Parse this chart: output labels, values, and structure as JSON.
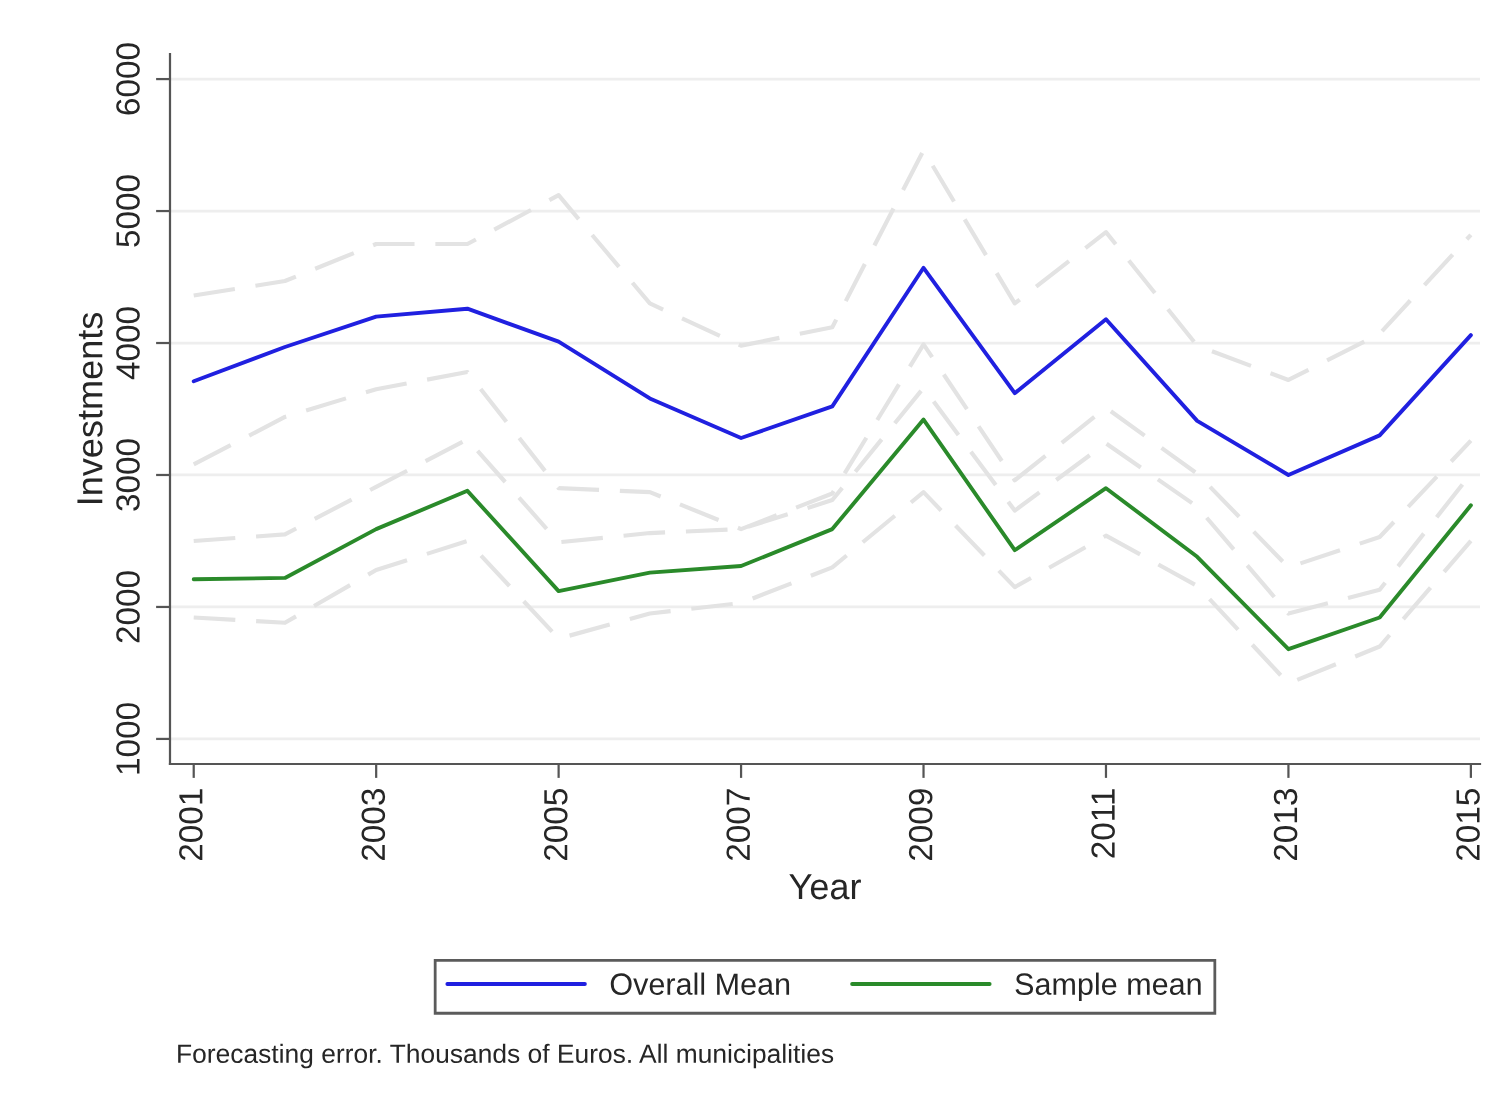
{
  "chart_data": {
    "type": "line",
    "xlabel": "Year",
    "ylabel": "Investments",
    "x": [
      2001,
      2002,
      2003,
      2004,
      2005,
      2006,
      2007,
      2008,
      2009,
      2010,
      2011,
      2012,
      2013,
      2014,
      2015
    ],
    "series": [
      {
        "color": "#e3e3e3",
        "line_style": "dashed",
        "values": [
          4360,
          4470,
          4750,
          4750,
          5120,
          4300,
          3980,
          4120,
          5460,
          4300,
          4840,
          3980,
          3720,
          4070,
          4820
        ]
      },
      {
        "color": "#e3e3e3",
        "line_style": "dashed",
        "values": [
          3080,
          3440,
          3650,
          3780,
          2900,
          2870,
          2590,
          2860,
          3990,
          2960,
          3510,
          3010,
          2300,
          2530,
          3260
        ]
      },
      {
        "color": "#e3e3e3",
        "line_style": "dashed",
        "values": [
          2500,
          2550,
          2910,
          3270,
          2490,
          2560,
          2590,
          2810,
          3660,
          2730,
          3240,
          2760,
          1950,
          2130,
          3010
        ]
      },
      {
        "color": "#e3e3e3",
        "line_style": "dashed",
        "values": [
          1920,
          1880,
          2280,
          2500,
          1760,
          1950,
          2030,
          2300,
          2870,
          2150,
          2540,
          2160,
          1420,
          1700,
          2500
        ]
      },
      {
        "name": "Overall Mean",
        "color": "#2020e0",
        "values": [
          3710,
          3970,
          4200,
          4260,
          4010,
          3580,
          3280,
          3520,
          4570,
          3620,
          4180,
          3410,
          3000,
          3300,
          4060
        ]
      },
      {
        "name": "Sample mean",
        "color": "#2a8a2a",
        "values": [
          2210,
          2220,
          2590,
          2880,
          2120,
          2260,
          2310,
          2590,
          3420,
          2430,
          2900,
          2380,
          1680,
          1920,
          2770
        ]
      }
    ],
    "xlim": [
      2000.74,
      2015.1
    ],
    "xticks": [
      2001,
      2003,
      2005,
      2007,
      2009,
      2011,
      2013,
      2015
    ],
    "ylim": [
      810,
      6190
    ],
    "yticks": [
      1000,
      2000,
      3000,
      4000,
      5000,
      6000
    ],
    "grid": "y",
    "legend": "bottom",
    "marker": "none",
    "line_style": "solid",
    "annotations": [
      "Forecasting error. Thousands of Euros. All municipalities"
    ]
  }
}
